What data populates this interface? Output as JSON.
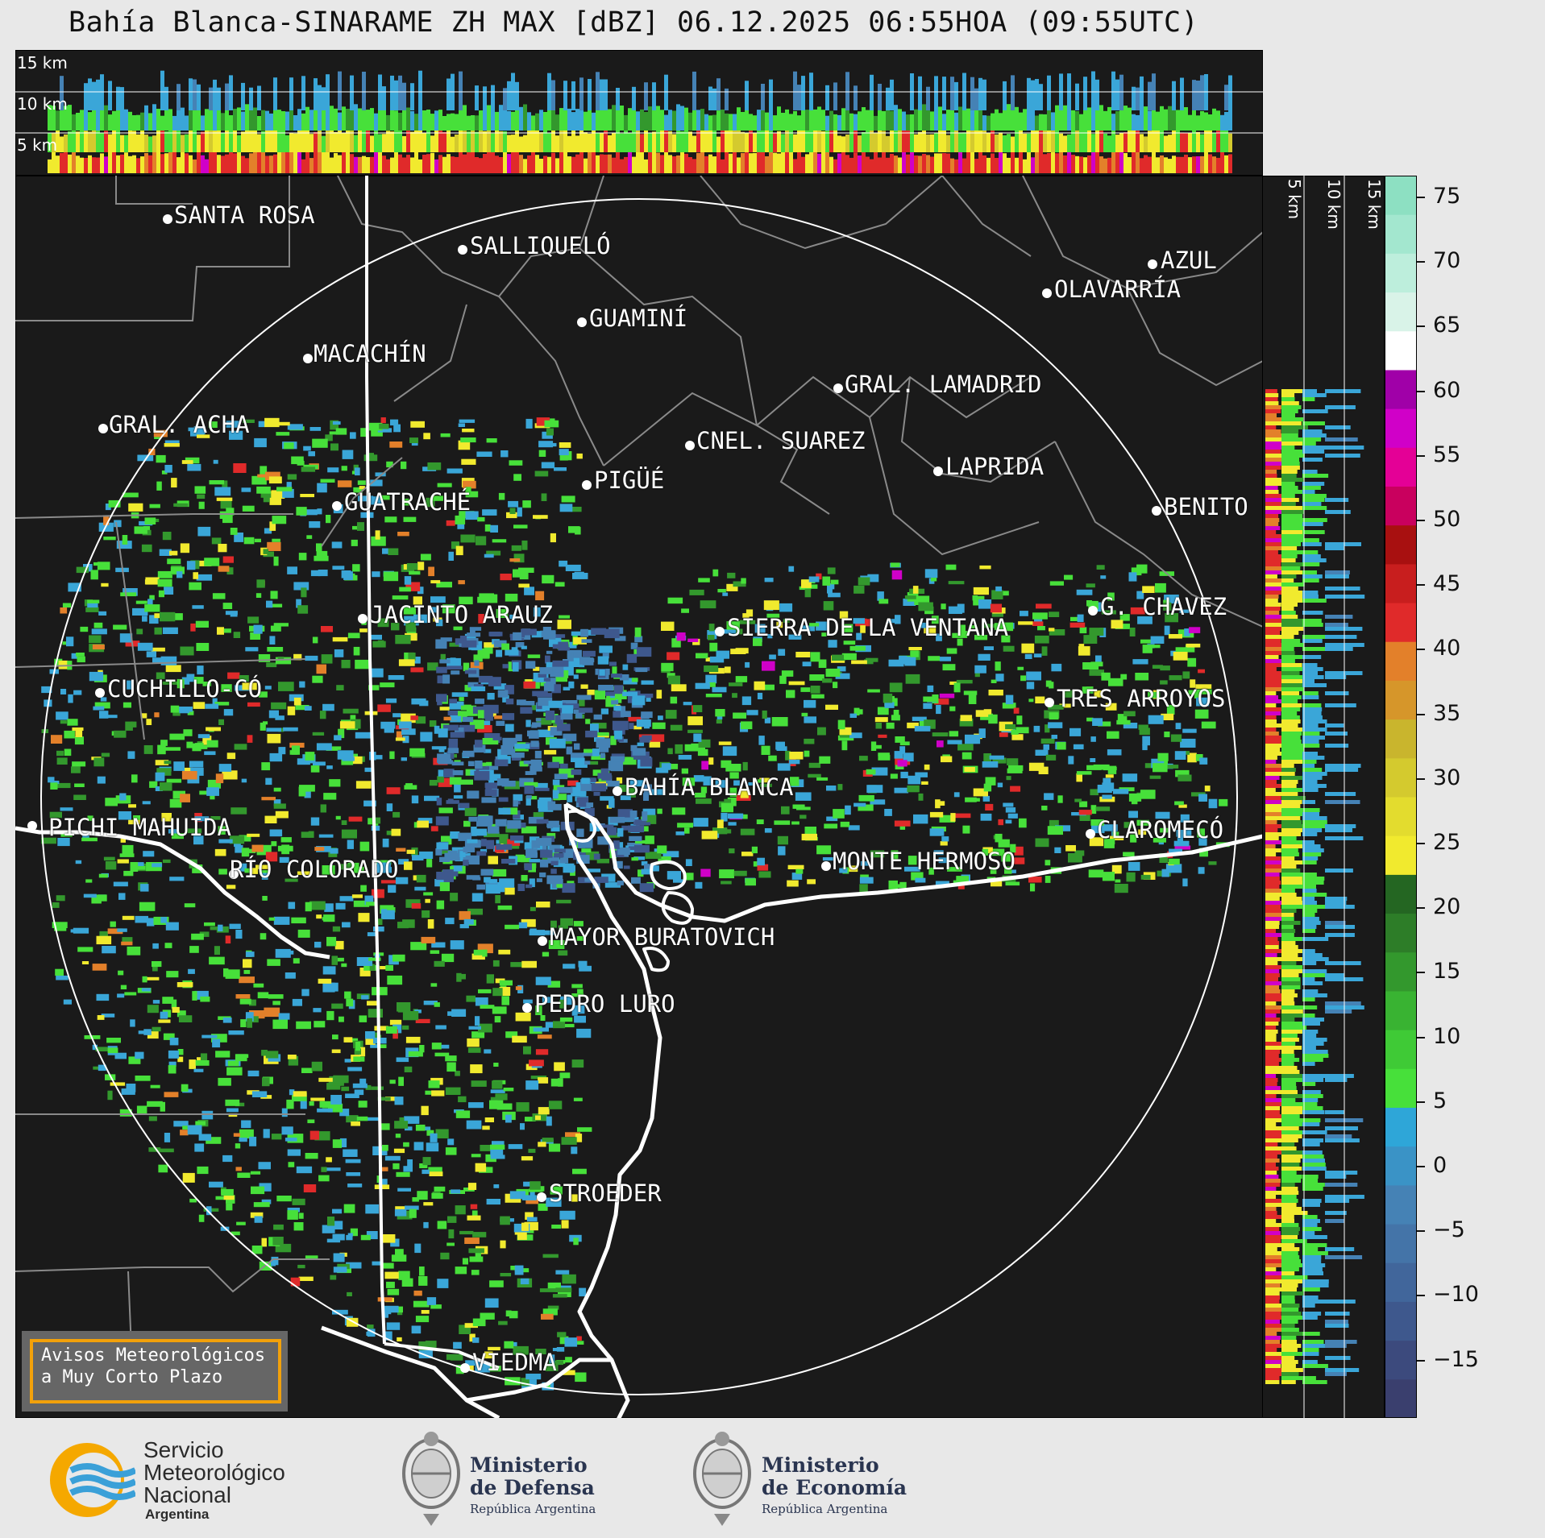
{
  "title": "Bahía Blanca-SINARAME ZH MAX [dBZ] 06.12.2025 06:55HOA (09:55UTC)",
  "top_panel": {
    "labels": [
      "15 km",
      "10 km",
      "5 km"
    ]
  },
  "right_panel": {
    "labels": [
      "5 km",
      "10 km",
      "15 km"
    ]
  },
  "colorbar": {
    "ticks": [
      "75",
      "70",
      "65",
      "60",
      "55",
      "50",
      "45",
      "40",
      "35",
      "30",
      "25",
      "20",
      "15",
      "10",
      "5",
      "0",
      "−5",
      "−10",
      "−15"
    ],
    "colors": [
      "#3a3f6e",
      "#3c4a7d",
      "#3e588d",
      "#41669b",
      "#4474a8",
      "#4582b5",
      "#3a93c6",
      "#2ea6d8",
      "#47e03a",
      "#3fca36",
      "#39b332",
      "#33982d",
      "#2d7d28",
      "#246622",
      "#f1ea2e",
      "#e3dc2e",
      "#d4ca2e",
      "#c9b52d",
      "#d6962a",
      "#e3802a",
      "#e02a2a",
      "#c81e1e",
      "#a81010",
      "#c9005e",
      "#e40096",
      "#d000c8",
      "#a000a8",
      "#ffffff",
      "#d9f3e8",
      "#bdeedc",
      "#a3e7cf",
      "#8de0c2"
    ]
  },
  "cities": [
    {
      "name": "SANTA ROSA"
    },
    {
      "name": "SALLIQUELÓ"
    },
    {
      "name": "GUAMINÍ"
    },
    {
      "name": "AZUL"
    },
    {
      "name": "OLAVARRÍA"
    },
    {
      "name": "MACACHÍN"
    },
    {
      "name": "GRAL. LAMADRID"
    },
    {
      "name": "GRAL. ACHA"
    },
    {
      "name": "CNEL. SUAREZ"
    },
    {
      "name": "LAPRIDA"
    },
    {
      "name": "PIGÜÉ"
    },
    {
      "name": "GUATRACHÉ"
    },
    {
      "name": "BENITO"
    },
    {
      "name": "G. CHAVEZ"
    },
    {
      "name": "JACINTO ARAUZ"
    },
    {
      "name": "SIERRA DE LA VENTANA"
    },
    {
      "name": "CUCHILLO-CÓ"
    },
    {
      "name": "TRES ARROYOS"
    },
    {
      "name": "BAHÍA BLANCA"
    },
    {
      "name": "PICHI MAHUIDA"
    },
    {
      "name": "CLAROMECÓ"
    },
    {
      "name": "MONTE HERMOSO"
    },
    {
      "name": "RÍO COLORADO"
    },
    {
      "name": "MAYOR BURATOVICH"
    },
    {
      "name": "PEDRO LURO"
    },
    {
      "name": "STROEDER"
    },
    {
      "name": "VIEDMA"
    }
  ],
  "avisos": {
    "line1": "Avisos Meteorológicos",
    "line2": "a Muy Corto Plazo"
  },
  "footer": {
    "smn": {
      "l1": "Servicio",
      "l2": "Meteorológico",
      "l3": "Nacional",
      "l4": "Argentina"
    },
    "defensa": {
      "l1": "Ministerio",
      "l2": "de Defensa",
      "l3": "República Argentina"
    },
    "economia": {
      "l1": "Ministerio",
      "l2": "de Economía",
      "l3": "República Argentina"
    }
  }
}
